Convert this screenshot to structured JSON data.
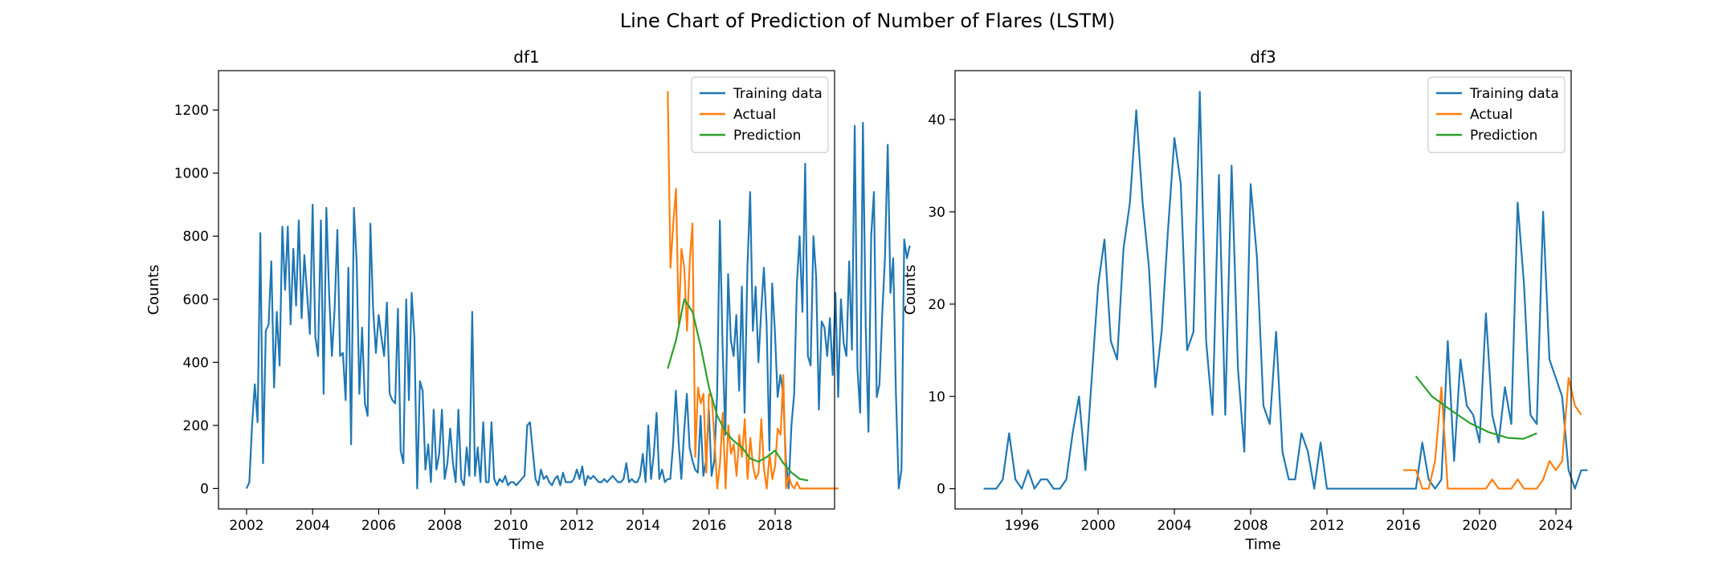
{
  "figure": {
    "title": "Line Chart of Prediction of Number of Flares (LSTM)"
  },
  "colors": {
    "training": "#1f77b4",
    "actual": "#ff7f0e",
    "prediction": "#2ca02c"
  },
  "chart_data": [
    {
      "type": "line",
      "title": "df1",
      "xlabel": "Time",
      "ylabel": "Counts",
      "xlim": [
        2001.15,
        2019.8
      ],
      "ylim": [
        -65,
        1325
      ],
      "xticks": [
        2002,
        2004,
        2006,
        2008,
        2010,
        2012,
        2014,
        2016,
        2018
      ],
      "yticks": [
        0,
        200,
        400,
        600,
        800,
        1000,
        1200
      ],
      "grid": false,
      "legend": "top-right",
      "series": [
        {
          "name": "Training data",
          "color": "#1f77b4",
          "x_start": 2002.0,
          "x_step": 0.0833,
          "values": [
            0,
            20,
            200,
            330,
            210,
            810,
            80,
            500,
            520,
            720,
            320,
            560,
            390,
            830,
            630,
            830,
            520,
            760,
            580,
            850,
            540,
            740,
            620,
            490,
            900,
            480,
            420,
            850,
            300,
            890,
            620,
            420,
            570,
            820,
            420,
            430,
            280,
            700,
            140,
            890,
            720,
            300,
            510,
            270,
            230,
            840,
            570,
            430,
            550,
            480,
            420,
            590,
            300,
            280,
            270,
            570,
            120,
            80,
            600,
            280,
            620,
            480,
            0,
            340,
            310,
            60,
            140,
            20,
            250,
            60,
            110,
            250,
            30,
            80,
            190,
            80,
            20,
            250,
            30,
            10,
            130,
            40,
            560,
            40,
            130,
            20,
            210,
            20,
            20,
            210,
            30,
            10,
            30,
            20,
            40,
            10,
            20,
            20,
            10,
            20,
            30,
            40,
            200,
            210,
            120,
            30,
            10,
            60,
            30,
            40,
            20,
            10,
            30,
            40,
            10,
            50,
            20,
            20,
            20,
            30,
            60,
            30,
            70,
            10,
            40,
            30,
            40,
            30,
            20,
            20,
            30,
            20,
            30,
            40,
            30,
            20,
            20,
            30,
            80,
            20,
            30,
            20,
            20,
            40,
            110,
            20,
            200,
            30,
            110,
            240,
            30,
            60,
            20,
            30,
            30,
            140,
            310,
            150,
            30,
            180,
            300,
            130,
            90,
            60,
            50,
            230,
            40,
            90,
            250,
            40,
            90,
            300,
            850,
            450,
            170,
            680,
            470,
            420,
            550,
            310,
            640,
            240,
            700,
            940,
            500,
            640,
            400,
            560,
            700,
            520,
            120,
            650,
            500,
            290,
            360,
            300,
            90,
            0,
            200,
            300,
            650,
            800,
            560,
            1030,
            420,
            390,
            800,
            670,
            250,
            530,
            510,
            420,
            540,
            360,
            620,
            290,
            600,
            460,
            420,
            720,
            440,
            1150,
            380,
            240,
            1160,
            510,
            180,
            800,
            940,
            290,
            330,
            550,
            730,
            1090,
            620,
            730,
            300,
            0,
            60,
            790,
            730,
            770
          ]
        },
        {
          "name": "Actual",
          "color": "#ff7f0e",
          "x_start": 2014.75,
          "x_step": 0.0833,
          "values": [
            1260,
            700,
            840,
            950,
            520,
            760,
            700,
            500,
            720,
            840,
            100,
            320,
            270,
            300,
            50,
            300,
            290,
            150,
            0,
            80,
            240,
            0,
            200,
            110,
            140,
            40,
            170,
            100,
            220,
            30,
            160,
            70,
            30,
            50,
            220,
            60,
            0,
            110,
            30,
            70,
            190,
            170,
            360,
            0,
            40,
            10,
            0,
            20,
            0,
            0,
            0,
            0,
            0,
            0,
            0,
            0,
            0,
            0,
            0,
            0,
            0,
            0,
            0
          ]
        },
        {
          "name": "Prediction",
          "color": "#2ca02c",
          "x": [
            2014.75,
            2015.0,
            2015.25,
            2015.5,
            2015.75,
            2016.0,
            2016.25,
            2016.5,
            2016.75,
            2017.0,
            2017.25,
            2017.5,
            2017.75,
            2018.0,
            2018.25,
            2018.5,
            2018.75,
            2019.0
          ],
          "values": [
            380,
            470,
            600,
            560,
            450,
            320,
            230,
            180,
            150,
            130,
            95,
            85,
            100,
            120,
            80,
            50,
            30,
            25
          ]
        }
      ]
    },
    {
      "type": "line",
      "title": "df3",
      "xlabel": "Time",
      "ylabel": "Counts",
      "xlim": [
        1992.5,
        2024.8
      ],
      "ylim": [
        -2.2,
        45.3
      ],
      "xticks": [
        1996,
        2000,
        2004,
        2008,
        2012,
        2016,
        2020,
        2024
      ],
      "yticks": [
        0,
        10,
        20,
        30,
        40
      ],
      "grid": false,
      "legend": "top-right",
      "series": [
        {
          "name": "Training data",
          "color": "#1f77b4",
          "x_start": 1994.0,
          "x_step": 0.3333,
          "values": [
            0,
            0,
            0,
            1,
            6,
            1,
            0,
            2,
            0,
            1,
            1,
            0,
            0,
            1,
            6,
            10,
            2,
            12,
            22,
            27,
            16,
            14,
            26,
            31,
            41,
            31,
            24,
            11,
            17,
            28,
            38,
            33,
            15,
            17,
            43,
            16,
            8,
            34,
            8,
            35,
            13,
            4,
            33,
            25,
            9,
            7,
            17,
            4,
            1,
            1,
            6,
            4,
            0,
            5,
            0,
            0,
            0,
            0,
            0,
            0,
            0,
            0,
            0,
            0,
            0,
            0,
            0,
            0,
            0,
            5,
            1,
            0,
            1,
            16,
            3,
            14,
            9,
            8,
            5,
            19,
            8,
            5,
            11,
            7,
            31,
            22,
            8,
            7,
            30,
            14,
            12,
            10,
            2,
            0,
            2,
            2
          ]
        },
        {
          "name": "Actual",
          "color": "#ff7f0e",
          "x_start": 2016.0,
          "x_step": 0.3333,
          "values": [
            2,
            2,
            2,
            0,
            0,
            3,
            11,
            0,
            0,
            0,
            0,
            0,
            0,
            0,
            1,
            0,
            0,
            0,
            1,
            0,
            0,
            0,
            1,
            3,
            2,
            3,
            12,
            9,
            8
          ]
        },
        {
          "name": "Prediction",
          "color": "#2ca02c",
          "x": [
            2016.65,
            2017.5,
            2018.5,
            2019.5,
            2020.5,
            2021.5,
            2022.3,
            2023.0
          ],
          "values": [
            12.2,
            10.0,
            8.5,
            7.1,
            6.1,
            5.5,
            5.4,
            6.0
          ]
        }
      ]
    }
  ]
}
